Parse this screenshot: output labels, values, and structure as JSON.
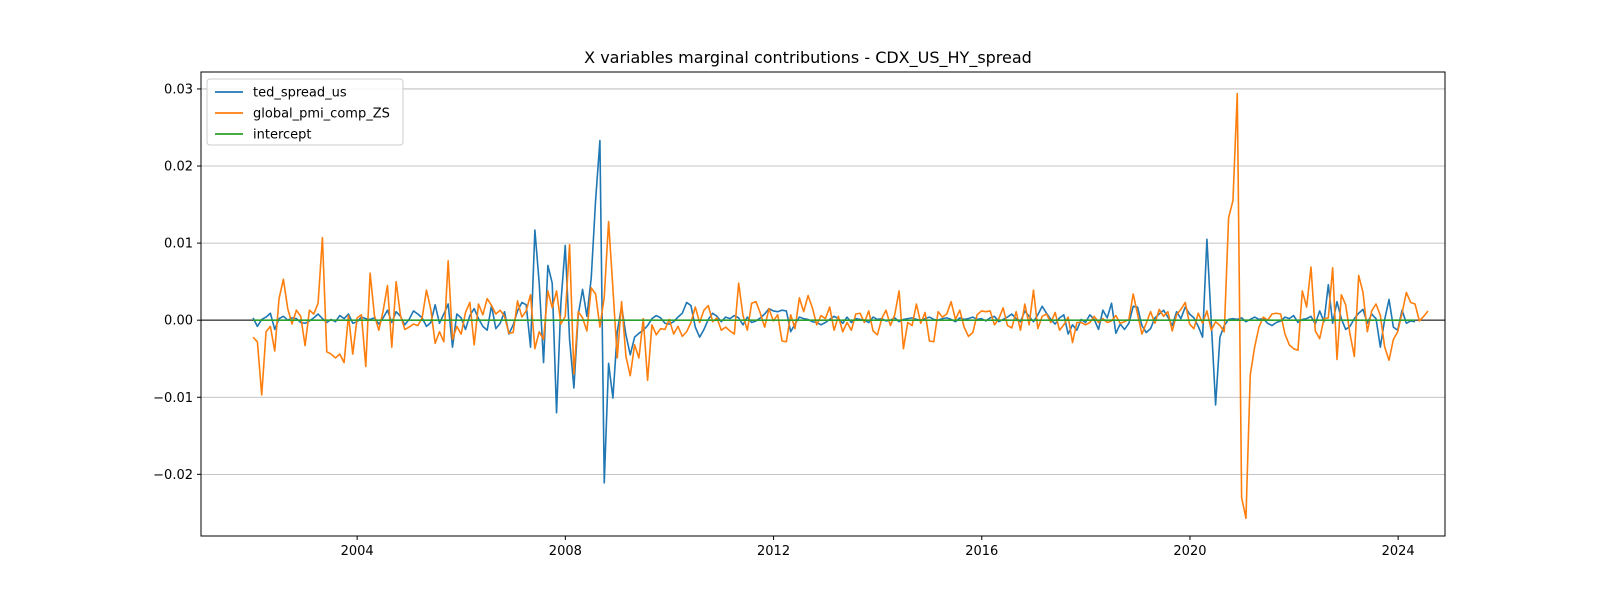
{
  "chart_data": {
    "type": "line",
    "title": "X variables marginal contributions - CDX_US_HY_spread",
    "xlabel": "",
    "ylabel": "",
    "x_range": [
      2001.0,
      2024.9
    ],
    "ylim": [
      -0.028,
      0.0322
    ],
    "x_ticks": [
      2004,
      2008,
      2012,
      2016,
      2020,
      2024
    ],
    "x_tick_labels": [
      "2004",
      "2008",
      "2012",
      "2016",
      "2020",
      "2024"
    ],
    "y_ticks": [
      -0.02,
      -0.01,
      0.0,
      0.01,
      0.02,
      0.03
    ],
    "y_tick_labels": [
      "−0.02",
      "−0.01",
      "0.00",
      "0.01",
      "0.02",
      "0.03"
    ],
    "grid": "horizontal",
    "zero_line": true,
    "legend_position": "top-left",
    "x_start": 2002.0,
    "x_step": 0.0833,
    "series": [
      {
        "name": "ted_spread_us",
        "color": "#1f77b4",
        "values": [
          0.0003,
          -0.0008,
          0.0001,
          0.0004,
          0.0009,
          -0.0012,
          0.0002,
          0.0005,
          0.0,
          0.0003,
          0.0002,
          -0.0003,
          -0.0004,
          -0.0001,
          0.0003,
          0.0008,
          0.0002,
          -0.0003,
          0.0001,
          -0.0002,
          0.0006,
          0.0002,
          0.0008,
          -0.0004,
          -0.0002,
          0.0004,
          0.0002,
          0.0001,
          0.0003,
          -0.0005,
          0.0003,
          0.0013,
          -0.0003,
          0.0011,
          0.0005,
          -0.0006,
          0.0001,
          0.0012,
          0.0008,
          0.0003,
          -0.0008,
          -0.0003,
          0.002,
          -0.0004,
          0.0008,
          0.0021,
          -0.0035,
          0.0008,
          0.0003,
          -0.0012,
          0.0006,
          0.0015,
          0.0002,
          -0.0008,
          -0.0013,
          0.0019,
          -0.0011,
          -0.0004,
          0.0011,
          -0.0018,
          -0.0006,
          0.0012,
          0.0023,
          0.002,
          -0.0035,
          0.0117,
          0.0048,
          -0.0055,
          0.0071,
          0.0048,
          -0.012,
          0.0022,
          0.0097,
          -0.0025,
          -0.0088,
          0.0007,
          0.004,
          0.0005,
          0.0055,
          0.0155,
          0.0233,
          -0.0211,
          -0.0056,
          -0.0101,
          -0.0015,
          0.0018,
          -0.0019,
          -0.0045,
          -0.0022,
          -0.0017,
          -0.0013,
          -0.0007,
          0.0002,
          0.0006,
          0.0003,
          -0.0004,
          -0.0005,
          -0.0002,
          0.0004,
          0.0009,
          0.0023,
          0.0019,
          -0.0009,
          -0.0022,
          -0.0012,
          0.0001,
          0.0009,
          0.0005,
          -0.0002,
          0.0004,
          0.0002,
          0.0006,
          0.0003,
          -0.0006,
          0.0004,
          -0.0003,
          -0.0001,
          0.0003,
          0.0008,
          0.0015,
          0.0012,
          0.0011,
          0.0013,
          0.0012,
          -0.0015,
          -0.0005,
          0.0004,
          0.0002,
          0.0001,
          -0.0002,
          -0.0003,
          -0.0006,
          -0.0003,
          0.0001,
          0.0005,
          0.0002,
          -0.0004,
          0.0004,
          -0.0003,
          0.0002,
          0.0001,
          0.0,
          -0.0003,
          0.0004,
          0.0001,
          0.0002,
          -0.0001,
          0.0,
          0.0003,
          -0.0002,
          0.0001,
          0.0002,
          0.0003,
          0.0001,
          0.0,
          0.0002,
          0.0004,
          0.0001,
          0.0,
          0.0002,
          0.0003,
          0.0001,
          -0.0002,
          0.0003,
          0.0001,
          0.0002,
          0.0004,
          0.0001,
          0.0002,
          -0.0001,
          0.0003,
          0.0005,
          -0.0002,
          0.0001,
          0.0004,
          0.0008,
          0.0002,
          -0.0002,
          0.0012,
          0.0005,
          -0.0002,
          0.0007,
          0.0018,
          0.0009,
          0.0001,
          -0.0005,
          0.0003,
          0.0007,
          -0.0018,
          -0.0006,
          -0.0013,
          0.0001,
          -0.0003,
          0.0007,
          0.0001,
          -0.0012,
          0.0013,
          0.0003,
          0.0022,
          -0.0017,
          -0.0005,
          -0.0012,
          -0.0004,
          0.0018,
          0.0017,
          -0.0007,
          -0.0016,
          -0.0011,
          0.0003,
          0.0008,
          0.0013,
          0.0004,
          -0.0007,
          0.0011,
          0.0002,
          0.0017,
          0.0008,
          0.0003,
          -0.0008,
          -0.0022,
          0.0105,
          -0.0002,
          -0.011,
          -0.0022,
          -0.0007,
          0.0001,
          0.0002,
          0.0001,
          0.0003,
          -0.0002,
          0.0001,
          0.0004,
          0.0001,
          0.0002,
          -0.0004,
          -0.0007,
          -0.0003,
          -0.0001,
          0.0004,
          0.0002,
          0.0006,
          -0.0003,
          0.0001,
          0.0002,
          0.0005,
          -0.0005,
          0.0012,
          -0.0002,
          0.0046,
          -0.0004,
          0.0024,
          0.0002,
          -0.0012,
          -0.0008,
          0.0002,
          0.0009,
          0.0014,
          -0.0004,
          0.0008,
          0.0002,
          -0.0035,
          0.0001,
          0.0027,
          -0.0009,
          -0.0013,
          0.0013,
          -0.0004,
          -0.0001,
          -0.0002
        ]
      },
      {
        "name": "global_pmi_comp_ZS",
        "color": "#ff7f0e",
        "values": [
          -0.0022,
          -0.0028,
          -0.0097,
          -0.0015,
          -0.0008,
          -0.004,
          0.0028,
          0.0053,
          0.0015,
          -0.0005,
          0.0013,
          0.0005,
          -0.0033,
          0.0013,
          0.0008,
          0.0022,
          0.0107,
          -0.0041,
          -0.0044,
          -0.0049,
          -0.0044,
          -0.0055,
          0.0006,
          -0.0044,
          0.0003,
          0.0007,
          -0.006,
          0.0061,
          0.0006,
          -0.0013,
          0.0012,
          0.0045,
          -0.0035,
          0.005,
          0.0006,
          -0.0012,
          -0.0009,
          -0.0005,
          -0.0007,
          0.0003,
          0.0039,
          0.0014,
          -0.003,
          -0.0015,
          -0.0028,
          0.0077,
          -0.0025,
          -0.0008,
          -0.0018,
          0.001,
          0.0023,
          -0.0032,
          0.0021,
          0.0007,
          0.0028,
          0.0019,
          0.0008,
          0.0013,
          0.0005,
          -0.0017,
          -0.0016,
          0.0025,
          0.0004,
          0.0012,
          0.0033,
          -0.0037,
          -0.0015,
          -0.0025,
          0.0038,
          0.0016,
          0.0038,
          -0.0005,
          0.0005,
          0.0098,
          -0.007,
          0.0011,
          0.0003,
          -0.0014,
          0.0042,
          0.0034,
          -0.0009,
          0.003,
          0.0128,
          0.0041,
          -0.0049,
          0.0024,
          -0.0047,
          -0.0072,
          -0.0032,
          -0.0049,
          0.0002,
          -0.0078,
          -0.0006,
          -0.0019,
          -0.0011,
          -0.0012,
          0.0001,
          -0.0018,
          -0.0008,
          -0.0021,
          -0.0015,
          -0.0003,
          0.0017,
          -0.0003,
          0.0013,
          0.0019,
          -0.0002,
          0.0003,
          -0.0013,
          -0.0009,
          -0.0014,
          -0.0018,
          0.0048,
          0.0006,
          -0.0013,
          0.0022,
          0.0024,
          0.0009,
          -0.0009,
          0.0015,
          -0.0001,
          0.0007,
          -0.0027,
          -0.0028,
          0.0007,
          -0.0011,
          0.0029,
          0.0011,
          0.0032,
          0.0016,
          -0.0006,
          0.0006,
          0.0002,
          0.0017,
          -0.0013,
          0.0005,
          -0.0015,
          -0.0003,
          -0.0013,
          0.0008,
          0.0009,
          -0.0003,
          0.0012,
          -0.0014,
          -0.0019,
          0.0002,
          0.0013,
          -0.0007,
          0.0007,
          0.0038,
          -0.0037,
          -0.0003,
          -0.0007,
          0.0021,
          -0.0004,
          0.001,
          -0.0027,
          -0.0028,
          0.0011,
          0.0004,
          0.0008,
          0.0024,
          0.0001,
          0.0013,
          -0.0009,
          -0.0021,
          -0.0016,
          0.0007,
          0.0012,
          0.0011,
          0.0012,
          -0.0006,
          0.0002,
          0.0016,
          -0.0007,
          -0.001,
          0.0011,
          -0.0013,
          0.0021,
          -0.0006,
          0.0039,
          -0.0011,
          0.0005,
          0.0008,
          -0.0003,
          0.001,
          -0.0013,
          -0.0006,
          0.0004,
          -0.0029,
          -0.0003,
          -0.0003,
          -0.0006,
          -0.0003,
          0.0005,
          -0.0003,
          0.0002,
          -0.0003,
          -0.0001,
          0.0006,
          -0.0004,
          -0.0002,
          0.0001,
          0.0034,
          0.0008,
          -0.0018,
          -0.0004,
          0.0011,
          -0.0004,
          0.0014,
          0.0005,
          0.0011,
          -0.0014,
          0.0007,
          0.0014,
          0.0023,
          -0.0005,
          -0.0011,
          0.0009,
          -0.0004,
          0.0012,
          -0.0013,
          -0.0002,
          -0.0007,
          -0.0015,
          0.0133,
          0.0155,
          0.0294,
          -0.023,
          -0.0257,
          -0.0071,
          -0.0035,
          -0.0009,
          0.0004,
          0.0,
          0.0008,
          0.0009,
          0.0008,
          -0.0018,
          -0.0032,
          -0.0037,
          -0.0039,
          0.0038,
          0.0017,
          0.0069,
          -0.0014,
          -0.0024,
          0.0002,
          0.0003,
          0.0068,
          -0.0051,
          0.0033,
          0.002,
          -0.0018,
          -0.0047,
          0.0058,
          0.0036,
          -0.0015,
          0.0012,
          0.0021,
          0.0006,
          -0.0035,
          -0.0052,
          -0.0025,
          -0.0015,
          0.0009,
          0.0036,
          0.0023,
          0.0021,
          -0.0001,
          0.0005,
          0.0012
        ]
      },
      {
        "name": "intercept",
        "color": "#2ca02c",
        "values": [
          0.0,
          0.0
        ]
      }
    ]
  }
}
